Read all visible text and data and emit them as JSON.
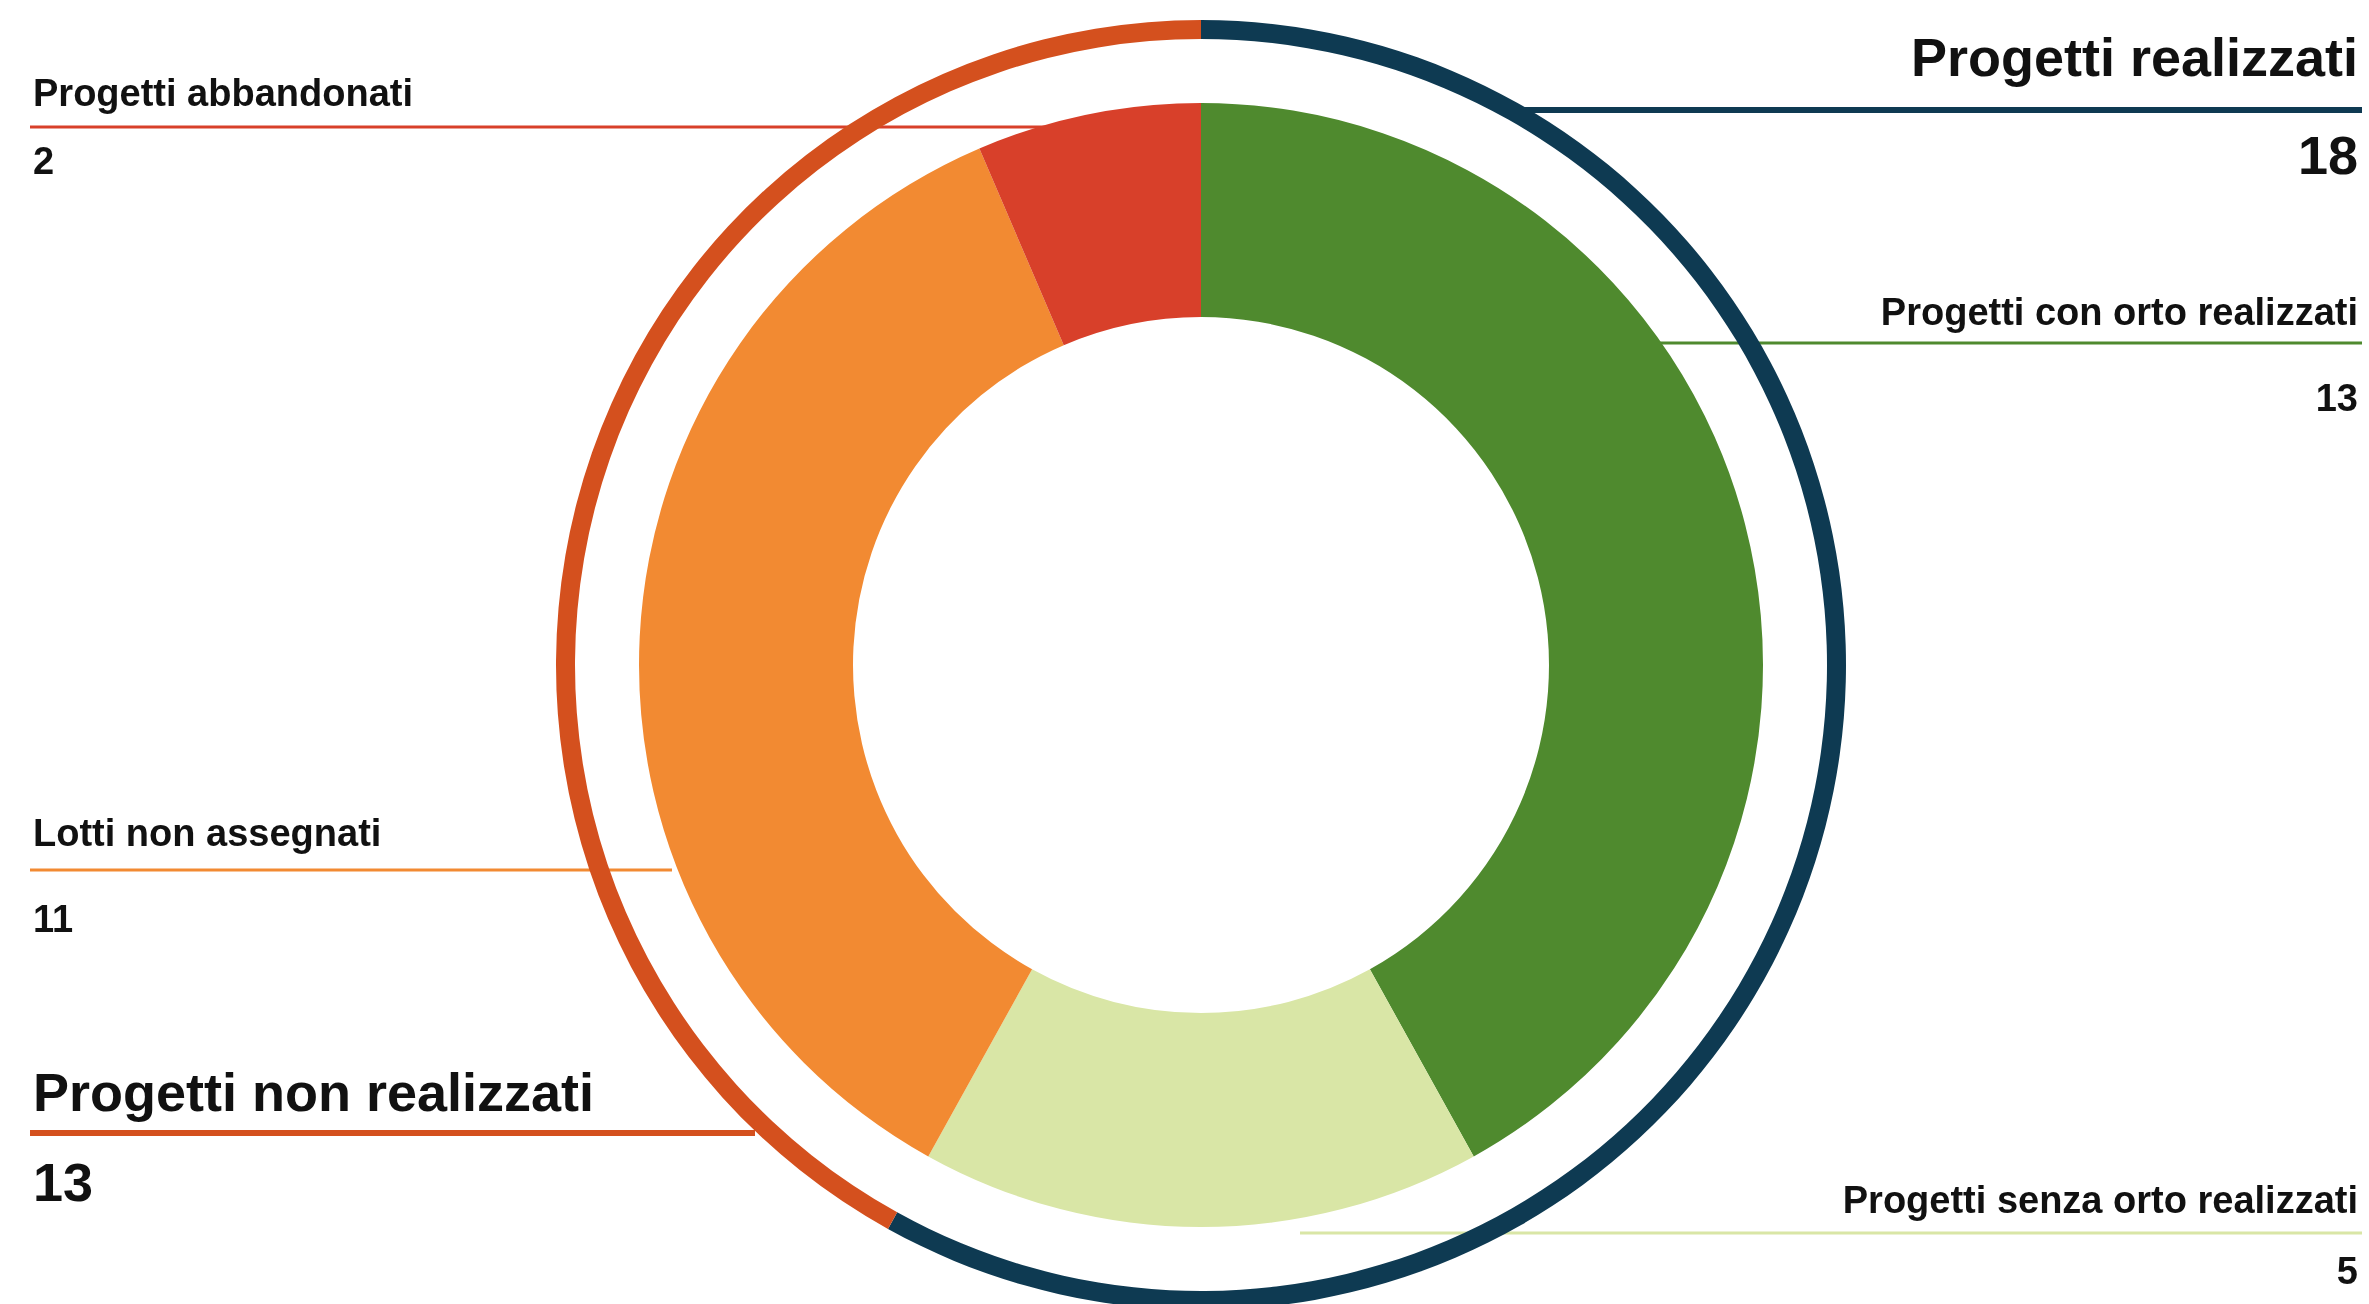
{
  "chart_data": [
    {
      "type": "donut",
      "categories": [
        "Progetti con orto realizzati",
        "Progetti senza orto realizzati",
        "Lotti non assegnati",
        "Progetti abbandonati"
      ],
      "values": [
        13,
        5,
        11,
        2
      ],
      "colors": [
        "#4f8a2e",
        "#d9e6a6",
        "#f28a32",
        "#d8402a"
      ],
      "data_labels": true
    },
    {
      "type": "donut",
      "categories": [
        "Progetti realizzati",
        "Progetti non realizzati"
      ],
      "values": [
        18,
        13
      ],
      "colors": [
        "#0e3a52",
        "#d4501e"
      ],
      "data_labels": true
    }
  ]
}
